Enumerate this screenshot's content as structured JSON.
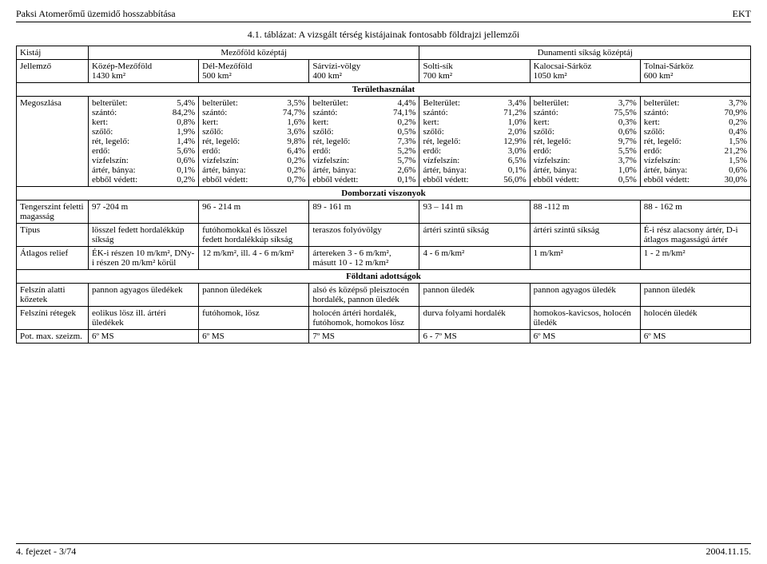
{
  "header": {
    "left": "Paksi Atomerőmű üzemidő hosszabbítása",
    "right": "EKT"
  },
  "caption": "4.1. táblázat: A vizsgált térség kistájainak fontosabb földrajzi jellemzői",
  "top": {
    "kistaj": "Kistáj",
    "jellemzo": "Jellemző",
    "macro1": "Mezőföld középtáj",
    "macro2": "Dunamenti síkság középtáj",
    "regions": [
      {
        "name": "Közép-Mezőföld",
        "area": "1430 km²"
      },
      {
        "name": "Dél-Mezőföld",
        "area": "500 km²"
      },
      {
        "name": "Sárvízi-völgy",
        "area": "400 km²"
      },
      {
        "name": "Solti-sík",
        "area": "700 km²"
      },
      {
        "name": "Kalocsai-Sárköz",
        "area": "1050 km²"
      },
      {
        "name": "Tolnai-Sárköz",
        "area": "600 km²"
      }
    ]
  },
  "sections": {
    "landuse": "Területhasználat",
    "relief": "Domborzati viszonyok",
    "geology": "Földtani adottságok"
  },
  "rows": {
    "megoszlas_label": "Megoszlása",
    "landuse_labels": [
      "belterület:",
      "szántó:",
      "kert:",
      "szőlő:",
      "rét, legelő:",
      "erdő:",
      "vízfelszín:",
      "ártér, bánya:",
      "ebből védett:"
    ],
    "landuse_labels_alt4": "Belterület:",
    "landuse_vals": [
      [
        "5,4%",
        "84,2%",
        "0,8%",
        "1,9%",
        "1,4%",
        "5,6%",
        "0,6%",
        "0,1%",
        "0,2%"
      ],
      [
        "3,5%",
        "74,7%",
        "1,6%",
        "3,6%",
        "9,8%",
        "6,4%",
        "0,2%",
        "0,2%",
        "0,7%"
      ],
      [
        "4,4%",
        "74,1%",
        "0,2%",
        "0,5%",
        "7,3%",
        "5,2%",
        "5,7%",
        "2,6%",
        "0,1%"
      ],
      [
        "3,4%",
        "71,2%",
        "1,0%",
        "2,0%",
        "12,9%",
        "3,0%",
        "6,5%",
        "0,1%",
        "56,0%"
      ],
      [
        "3,7%",
        "75,5%",
        "0,3%",
        "0,6%",
        "9,7%",
        "5,5%",
        "3,7%",
        "1,0%",
        "0,5%"
      ],
      [
        "3,7%",
        "70,9%",
        "0,2%",
        "0,4%",
        "1,5%",
        "21,2%",
        "1,5%",
        "0,6%",
        "30,0%"
      ]
    ],
    "tengerszint_label": "Tengerszint feletti magasság",
    "tengerszint": [
      "97 -204 m",
      "96 - 214 m",
      "89 - 161 m",
      "93 – 141 m",
      "88 -112 m",
      "88 - 162 m"
    ],
    "tipus_label": "Típus",
    "tipus": [
      "lösszel fedett hordalékkúp síkság",
      "futóhomokkal és lösszel fedett hordalékkúp síkság",
      "teraszos folyóvölgy",
      "ártéri szintű síkság",
      "ártéri szintű síkság",
      "É-i rész alacsony ártér, D-i átlagos magasságú ártér"
    ],
    "relief_label": "Átlagos relief",
    "relief": [
      "ÉK-i részen 10 m/km², DNy-i részen 20 m/km² körül",
      "12 m/km², ill. 4 - 6 m/km²",
      "ártereken 3 - 6 m/km², másutt 10 - 12 m/km²",
      "4 - 6 m/km²",
      "1 m/km²",
      "1 - 2 m/km²"
    ],
    "felszin_alatti_label": "Felszín alatti kőzetek",
    "felszin_alatti": [
      "pannon agyagos üledékek",
      "pannon üledékek",
      "alsó és középső pleisztocén hordalék, pannon üledék",
      "pannon üledék",
      "pannon agyagos üledék",
      "pannon üledék"
    ],
    "felszini_label": "Felszíni rétegek",
    "felszini": [
      "eolikus lösz ill. ártéri üledékek",
      "futóhomok, lösz",
      "holocén ártéri hordalék, futóhomok, homokos lösz",
      "durva folyami hordalék",
      "homokos-kavicsos, holocén üledék",
      "holocén üledék"
    ],
    "potmax_label": "Pot. max. szeizm.",
    "potmax": [
      "6º MS",
      "6º MS",
      "7º MS",
      "6 - 7º MS",
      "6º MS",
      "6º MS"
    ]
  },
  "footer": {
    "left": "4. fejezet - 3/74",
    "right": "2004.11.15."
  }
}
